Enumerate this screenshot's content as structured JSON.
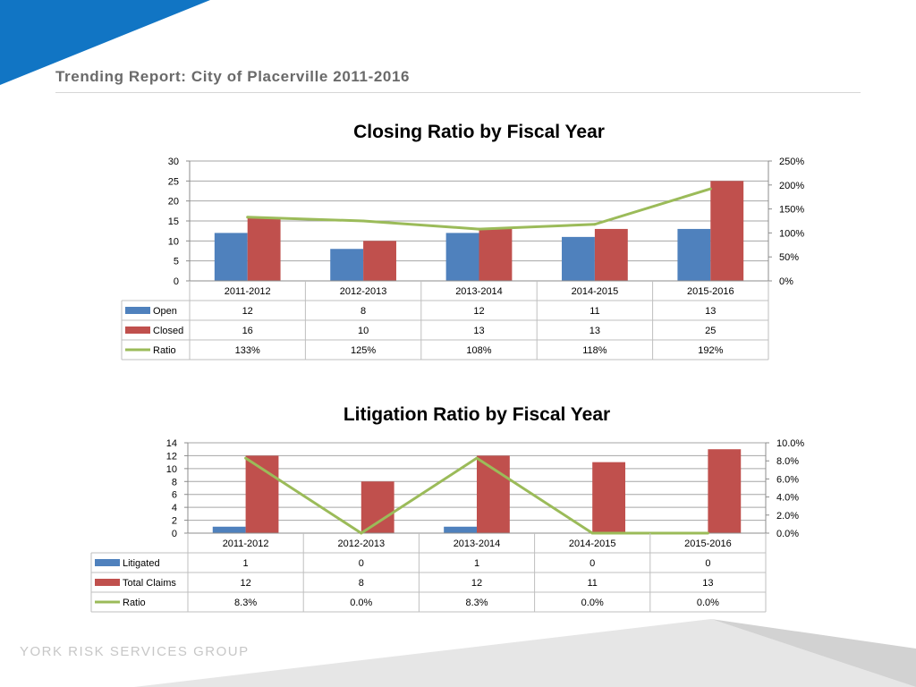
{
  "header": {
    "title": "Trending Report: City of Placerville 2011-2016"
  },
  "footer": {
    "brand": "YORK RISK SERVICES GROUP"
  },
  "colors": {
    "accent_blue": "#1175c4",
    "open": "#4f81bd",
    "closed": "#c0504d",
    "ratio": "#9bbb59"
  },
  "chart_data": [
    {
      "type": "bar",
      "title": "Closing Ratio by Fiscal Year",
      "categories": [
        "2011-2012",
        "2012-2013",
        "2013-2014",
        "2014-2015",
        "2015-2016"
      ],
      "series": [
        {
          "name": "Open",
          "type": "bar",
          "axis": "left",
          "values": [
            12,
            8,
            12,
            11,
            13
          ],
          "labels": [
            "12",
            "8",
            "12",
            "11",
            "13"
          ]
        },
        {
          "name": "Closed",
          "type": "bar",
          "axis": "left",
          "values": [
            16,
            10,
            13,
            13,
            25
          ],
          "labels": [
            "16",
            "10",
            "13",
            "13",
            "25"
          ]
        },
        {
          "name": "Ratio",
          "type": "line",
          "axis": "right",
          "values": [
            1.33,
            1.25,
            1.08,
            1.18,
            1.92
          ],
          "labels": [
            "133%",
            "125%",
            "108%",
            "118%",
            "192%"
          ]
        }
      ],
      "ylim": [
        0,
        30
      ],
      "y_ticks": [
        "0",
        "5",
        "10",
        "15",
        "20",
        "25",
        "30"
      ],
      "y2lim": [
        0,
        2.5
      ],
      "y2_ticks": [
        "0%",
        "50%",
        "100%",
        "150%",
        "200%",
        "250%"
      ],
      "grid": true,
      "legend": "data-table"
    },
    {
      "type": "bar",
      "title": "Litigation Ratio by Fiscal Year",
      "categories": [
        "2011-2012",
        "2012-2013",
        "2013-2014",
        "2014-2015",
        "2015-2016"
      ],
      "series": [
        {
          "name": "Litigated",
          "type": "bar",
          "axis": "left",
          "values": [
            1,
            0,
            1,
            0,
            0
          ],
          "labels": [
            "1",
            "0",
            "1",
            "0",
            "0"
          ]
        },
        {
          "name": "Total Claims",
          "type": "bar",
          "axis": "left",
          "values": [
            12,
            8,
            12,
            11,
            13
          ],
          "labels": [
            "12",
            "8",
            "12",
            "11",
            "13"
          ]
        },
        {
          "name": "Ratio",
          "type": "line",
          "axis": "right",
          "values": [
            0.083,
            0.0,
            0.083,
            0.0,
            0.0
          ],
          "labels": [
            "8.3%",
            "0.0%",
            "8.3%",
            "0.0%",
            "0.0%"
          ]
        }
      ],
      "ylim": [
        0,
        14
      ],
      "y_ticks": [
        "0",
        "2",
        "4",
        "6",
        "8",
        "10",
        "12",
        "14"
      ],
      "y2lim": [
        0,
        0.1
      ],
      "y2_ticks": [
        "0.0%",
        "2.0%",
        "4.0%",
        "6.0%",
        "8.0%",
        "10.0%"
      ],
      "grid": true,
      "legend": "data-table"
    }
  ]
}
